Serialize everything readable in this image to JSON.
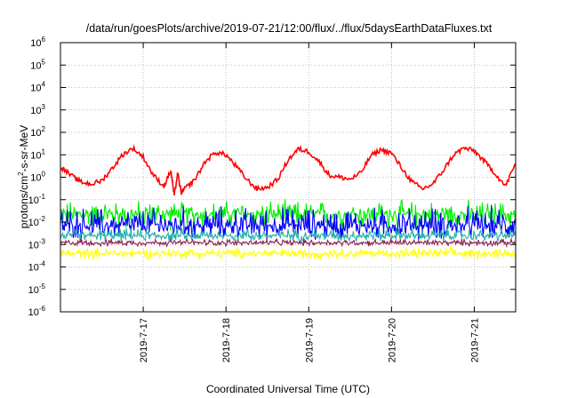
{
  "chart_data": {
    "type": "line",
    "title": "/data/run/goesPlots/archive/2019-07-21/12:00/flux/../flux/5daysEarthDataFluxes.txt",
    "xlabel": "Coordinated Universal Time (UTC)",
    "ylabel": "protons/cm²-s-sr-MeV",
    "ylabel_parts": {
      "pre": "protons/cm",
      "sup": "2",
      "post": "-s-sr-MeV"
    },
    "y_scale": "log",
    "ylim": [
      1e-06,
      1000000.0
    ],
    "y_ticks": [
      {
        "value": 1e-06,
        "base": "10",
        "exp": "-6"
      },
      {
        "value": 1e-05,
        "base": "10",
        "exp": "-5"
      },
      {
        "value": 0.0001,
        "base": "10",
        "exp": "-4"
      },
      {
        "value": 0.001,
        "base": "10",
        "exp": "-3"
      },
      {
        "value": 0.01,
        "base": "10",
        "exp": "-2"
      },
      {
        "value": 0.1,
        "base": "10",
        "exp": "-1"
      },
      {
        "value": 1.0,
        "base": "10",
        "exp": "0"
      },
      {
        "value": 10.0,
        "base": "10",
        "exp": "1"
      },
      {
        "value": 100.0,
        "base": "10",
        "exp": "2"
      },
      {
        "value": 1000.0,
        "base": "10",
        "exp": "3"
      },
      {
        "value": 10000.0,
        "base": "10",
        "exp": "4"
      },
      {
        "value": 100000.0,
        "base": "10",
        "exp": "5"
      },
      {
        "value": 1000000.0,
        "base": "10",
        "exp": "6"
      }
    ],
    "x_type": "date",
    "xlim": [
      "2019-07-16T00:00",
      "2019-07-21T12:00"
    ],
    "x_ticks": [
      "2019-7-17",
      "2019-7-18",
      "2019-7-19",
      "2019-7-20",
      "2019-7-21"
    ],
    "grid": true,
    "series": [
      {
        "color": "#ff0000",
        "style": "line",
        "x": [
          "2019-07-16T00:00",
          "2019-07-16T03:00",
          "2019-07-16T06:00",
          "2019-07-16T09:00",
          "2019-07-16T12:00",
          "2019-07-16T15:00",
          "2019-07-16T18:00",
          "2019-07-16T21:00",
          "2019-07-17T00:00",
          "2019-07-17T03:00",
          "2019-07-17T06:00",
          "2019-07-17T08:00",
          "2019-07-17T09:00",
          "2019-07-17T10:00",
          "2019-07-17T11:00",
          "2019-07-17T12:00",
          "2019-07-17T15:00",
          "2019-07-17T18:00",
          "2019-07-17T21:00",
          "2019-07-18T00:00",
          "2019-07-18T03:00",
          "2019-07-18T06:00",
          "2019-07-18T09:00",
          "2019-07-18T12:00",
          "2019-07-18T15:00",
          "2019-07-18T18:00",
          "2019-07-18T21:00",
          "2019-07-19T00:00",
          "2019-07-19T03:00",
          "2019-07-19T06:00",
          "2019-07-19T09:00",
          "2019-07-19T12:00",
          "2019-07-19T15:00",
          "2019-07-19T18:00",
          "2019-07-19T21:00",
          "2019-07-20T00:00",
          "2019-07-20T03:00",
          "2019-07-20T06:00",
          "2019-07-20T09:00",
          "2019-07-20T12:00",
          "2019-07-20T15:00",
          "2019-07-20T18:00",
          "2019-07-20T21:00",
          "2019-07-21T00:00",
          "2019-07-21T03:00",
          "2019-07-21T06:00",
          "2019-07-21T09:00",
          "2019-07-21T12:00"
        ],
        "y": [
          3,
          1.2,
          0.6,
          0.5,
          0.7,
          2.5,
          10,
          20,
          8,
          1.2,
          0.4,
          2,
          0.15,
          1.5,
          0.2,
          0.3,
          0.8,
          5,
          13,
          10,
          3,
          0.8,
          0.3,
          0.35,
          0.8,
          6,
          18,
          14,
          5,
          1.2,
          1,
          0.8,
          1.5,
          9,
          17,
          12,
          2.5,
          0.6,
          0.3,
          0.5,
          2,
          10,
          20,
          15,
          5,
          1.5,
          0.4,
          4
        ]
      },
      {
        "color": "#00ee00",
        "style": "noise",
        "x_range": [
          "2019-07-16T00:00",
          "2019-07-21T12:00"
        ],
        "center": 0.022,
        "low": 0.0035,
        "high": 0.12
      },
      {
        "color": "#0000ff",
        "style": "noise",
        "x_range": [
          "2019-07-16T00:00",
          "2019-07-21T12:00"
        ],
        "center": 0.007,
        "low": 0.0012,
        "high": 0.07
      },
      {
        "color": "#20b2aa",
        "style": "noise",
        "x_range": [
          "2019-07-16T00:00",
          "2019-07-21T12:00"
        ],
        "center": 0.0025,
        "low": 0.0012,
        "high": 0.006
      },
      {
        "color": "#8b2252",
        "style": "noise",
        "x_range": [
          "2019-07-16T00:00",
          "2019-07-21T12:00"
        ],
        "center": 0.0012,
        "low": 0.0008,
        "high": 0.0019
      },
      {
        "color": "#ffff00",
        "style": "noise",
        "x_range": [
          "2019-07-16T00:00",
          "2019-07-21T12:00"
        ],
        "center": 0.0004,
        "low": 0.0002,
        "high": 0.0008
      }
    ]
  }
}
